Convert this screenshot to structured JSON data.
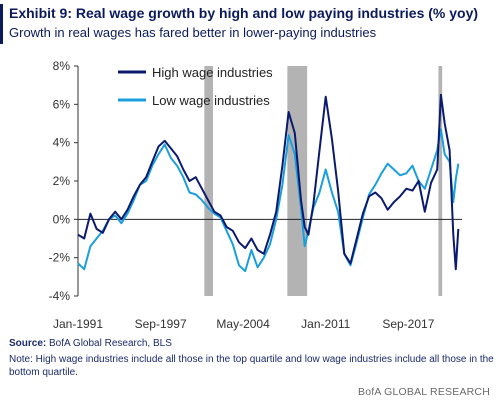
{
  "header": {
    "title": "Exhibit 9: Real wage growth by high and low paying industries (% yoy)",
    "subtitle": "Growth in real wages has fared better in lower-paying industries"
  },
  "footer": {
    "source_label": "Source:",
    "source_text": " BofA Global Research, BLS",
    "note": "Note: High wage industries include all those in the top quartile and low wage industries include all those in the bottom quartile.",
    "brand": "BofA GLOBAL RESEARCH"
  },
  "chart_data": {
    "type": "line",
    "title": "",
    "xlabel": "",
    "ylabel": "",
    "xlim": [
      1991.0,
      2022.0
    ],
    "ylim": [
      -4,
      8
    ],
    "yticks": [
      -4,
      -2,
      0,
      2,
      4,
      6,
      8
    ],
    "ytick_labels": [
      "-4%",
      "-2%",
      "0%",
      "2%",
      "4%",
      "6%",
      "8%"
    ],
    "xticks": [
      1991.0,
      1997.67,
      2004.33,
      2011.0,
      2017.67
    ],
    "xtick_labels": [
      "Jan-1991",
      "Sep-1997",
      "May-2004",
      "Jan-2011",
      "Sep-2017"
    ],
    "grid": false,
    "legend_position": "top-left",
    "recessions": [
      [
        2001.2,
        2001.9
      ],
      [
        2007.9,
        2009.5
      ],
      [
        2020.1,
        2020.4
      ]
    ],
    "series": [
      {
        "name": "High wage industries",
        "color": "#0b1a6e",
        "x": [
          1991.0,
          1991.5,
          1992.0,
          1992.5,
          1993.0,
          1993.5,
          1994.0,
          1994.5,
          1995.0,
          1995.5,
          1996.0,
          1996.5,
          1997.0,
          1997.5,
          1998.0,
          1998.5,
          1999.0,
          1999.5,
          2000.0,
          2000.5,
          2001.0,
          2001.5,
          2002.0,
          2002.5,
          2003.0,
          2003.5,
          2004.0,
          2004.5,
          2005.0,
          2005.5,
          2006.0,
          2006.5,
          2007.0,
          2007.5,
          2008.0,
          2008.5,
          2009.0,
          2009.3,
          2009.6,
          2010.0,
          2010.5,
          2011.0,
          2011.5,
          2012.0,
          2012.5,
          2013.0,
          2013.5,
          2014.0,
          2014.5,
          2015.0,
          2015.5,
          2016.0,
          2016.5,
          2017.0,
          2017.5,
          2018.0,
          2018.5,
          2019.0,
          2019.5,
          2020.0,
          2020.3,
          2020.6,
          2021.0,
          2021.3,
          2021.5,
          2021.7
        ],
        "values": [
          -0.8,
          -1.0,
          0.3,
          -0.5,
          -0.7,
          0.0,
          0.4,
          0.0,
          0.5,
          1.2,
          1.8,
          2.2,
          3.0,
          3.8,
          4.1,
          3.7,
          3.3,
          2.6,
          2.0,
          2.2,
          1.6,
          1.0,
          0.4,
          0.2,
          -0.4,
          -0.6,
          -1.2,
          -1.5,
          -1.0,
          -1.6,
          -1.8,
          -0.8,
          0.4,
          2.8,
          5.6,
          4.5,
          1.0,
          -0.4,
          -0.8,
          0.8,
          3.6,
          6.4,
          4.2,
          1.5,
          -1.8,
          -2.3,
          -1.0,
          0.3,
          1.2,
          1.4,
          1.1,
          0.5,
          0.9,
          1.2,
          1.6,
          1.5,
          2.0,
          0.4,
          1.9,
          2.6,
          6.5,
          5.0,
          3.6,
          -0.8,
          -2.6,
          -0.5
        ]
      },
      {
        "name": "Low wage industries",
        "color": "#1a9fdc",
        "x": [
          1991.0,
          1991.5,
          1992.0,
          1992.5,
          1993.0,
          1993.5,
          1994.0,
          1994.5,
          1995.0,
          1995.5,
          1996.0,
          1996.5,
          1997.0,
          1997.5,
          1998.0,
          1998.5,
          1999.0,
          1999.5,
          2000.0,
          2000.5,
          2001.0,
          2001.5,
          2002.0,
          2002.5,
          2003.0,
          2003.5,
          2004.0,
          2004.5,
          2005.0,
          2005.5,
          2006.0,
          2006.5,
          2007.0,
          2007.5,
          2008.0,
          2008.5,
          2009.0,
          2009.3,
          2009.6,
          2010.0,
          2010.5,
          2011.0,
          2011.5,
          2012.0,
          2012.5,
          2013.0,
          2013.5,
          2014.0,
          2014.5,
          2015.0,
          2015.5,
          2016.0,
          2016.5,
          2017.0,
          2017.5,
          2018.0,
          2018.5,
          2019.0,
          2019.5,
          2020.0,
          2020.3,
          2020.6,
          2021.0,
          2021.3,
          2021.5,
          2021.7
        ],
        "values": [
          -2.3,
          -2.6,
          -1.4,
          -1.0,
          -0.6,
          0.0,
          0.2,
          -0.2,
          0.3,
          1.0,
          1.8,
          2.0,
          2.8,
          3.4,
          3.9,
          3.2,
          2.8,
          2.2,
          1.4,
          1.3,
          1.0,
          0.6,
          0.3,
          0.1,
          -0.6,
          -1.3,
          -2.4,
          -2.7,
          -1.6,
          -2.5,
          -2.0,
          -1.3,
          0.0,
          1.8,
          4.4,
          3.4,
          0.6,
          -1.4,
          -0.6,
          0.6,
          1.4,
          2.6,
          1.4,
          0.4,
          -1.8,
          -2.4,
          -1.2,
          0.1,
          1.3,
          1.8,
          2.4,
          2.9,
          2.6,
          2.3,
          2.4,
          2.8,
          2.0,
          1.6,
          2.6,
          3.6,
          4.7,
          3.4,
          3.0,
          0.9,
          2.1,
          2.9
        ]
      }
    ]
  }
}
